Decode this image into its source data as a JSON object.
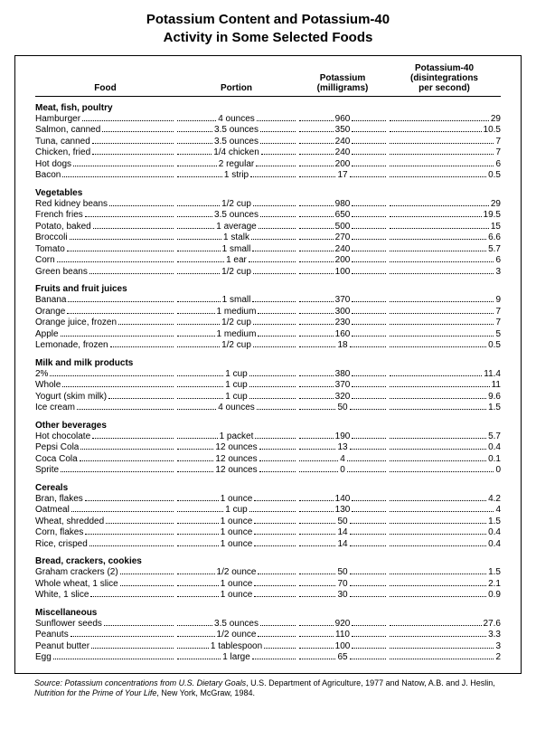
{
  "title_line1": "Potassium Content and Potassium-40",
  "title_line2": "Activity in Some Selected Foods",
  "headers": {
    "food": "Food",
    "portion": "Portion",
    "potassium_l1": "Potassium",
    "potassium_l2": "(milligrams)",
    "k40_l1": "Potassium-40",
    "k40_l2": "(disintegrations",
    "k40_l3": "per second)"
  },
  "categories": [
    {
      "name": "Meat, fish, poultry",
      "rows": [
        {
          "food": "Hamburger",
          "portion": "4 ounces",
          "pot": "960",
          "k40": "29"
        },
        {
          "food": "Salmon, canned",
          "portion": "3.5 ounces",
          "pot": "350",
          "k40": "10.5"
        },
        {
          "food": "Tuna, canned",
          "portion": "3.5 ounces",
          "pot": "240",
          "k40": "7"
        },
        {
          "food": "Chicken, fried",
          "portion": "1/4 chicken",
          "pot": "240",
          "k40": "7"
        },
        {
          "food": "Hot dogs",
          "portion": "2 regular",
          "pot": "200",
          "k40": "6"
        },
        {
          "food": "Bacon",
          "portion": "1 strip",
          "pot": "17",
          "k40": "0.5"
        }
      ]
    },
    {
      "name": "Vegetables",
      "rows": [
        {
          "food": "Red kidney beans",
          "portion": "1/2 cup",
          "pot": "980",
          "k40": "29"
        },
        {
          "food": "French fries",
          "portion": "3.5 ounces",
          "pot": "650",
          "k40": "19.5"
        },
        {
          "food": "Potato, baked",
          "portion": "1 average",
          "pot": "500",
          "k40": "15"
        },
        {
          "food": "Broccoli",
          "portion": "1 stalk",
          "pot": "270",
          "k40": "6.6"
        },
        {
          "food": "Tomato",
          "portion": "1 small",
          "pot": "240",
          "k40": "5.7"
        },
        {
          "food": "Corn",
          "portion": "1 ear",
          "pot": "200",
          "k40": "6"
        },
        {
          "food": "Green beans",
          "portion": "1/2 cup",
          "pot": "100",
          "k40": "3"
        }
      ]
    },
    {
      "name": "Fruits and fruit juices",
      "rows": [
        {
          "food": "Banana",
          "portion": "1 small",
          "pot": "370",
          "k40": "9"
        },
        {
          "food": "Orange",
          "portion": "1 medium",
          "pot": "300",
          "k40": "7"
        },
        {
          "food": "Orange juice, frozen",
          "portion": "1/2 cup",
          "pot": "230",
          "k40": "7"
        },
        {
          "food": "Apple",
          "portion": "1 medium",
          "pot": "160",
          "k40": "5"
        },
        {
          "food": "Lemonade, frozen",
          "portion": "1/2 cup",
          "pot": "18",
          "k40": "0.5"
        }
      ]
    },
    {
      "name": "Milk and milk products",
      "rows": [
        {
          "food": "2%",
          "portion": "1 cup",
          "pot": "380",
          "k40": "11.4"
        },
        {
          "food": "Whole",
          "portion": "1 cup",
          "pot": "370",
          "k40": "11"
        },
        {
          "food": "Yogurt (skim milk)",
          "portion": "1 cup",
          "pot": "320",
          "k40": "9.6"
        },
        {
          "food": "Ice cream",
          "portion": "4 ounces",
          "pot": "50",
          "k40": "1.5"
        }
      ]
    },
    {
      "name": "Other beverages",
      "rows": [
        {
          "food": "Hot chocolate",
          "portion": "1 packet",
          "pot": "190",
          "k40": "5.7"
        },
        {
          "food": "Pepsi Cola",
          "portion": "12 ounces",
          "pot": "13",
          "k40": "0.4"
        },
        {
          "food": "Coca Cola",
          "portion": "12 ounces",
          "pot": "4",
          "k40": "0.1"
        },
        {
          "food": "Sprite",
          "portion": "12 ounces",
          "pot": "0",
          "k40": "0"
        }
      ]
    },
    {
      "name": "Cereals",
      "rows": [
        {
          "food": "Bran, flakes",
          "portion": "1 ounce",
          "pot": "140",
          "k40": "4.2"
        },
        {
          "food": "Oatmeal",
          "portion": "1 cup",
          "pot": "130",
          "k40": "4"
        },
        {
          "food": "Wheat, shredded",
          "portion": "1 ounce",
          "pot": "50",
          "k40": "1.5"
        },
        {
          "food": "Corn, flakes",
          "portion": "1 ounce",
          "pot": "14",
          "k40": "0.4"
        },
        {
          "food": "Rice, crisped",
          "portion": "1 ounce",
          "pot": "14",
          "k40": "0.4"
        }
      ]
    },
    {
      "name": "Bread, crackers, cookies",
      "rows": [
        {
          "food": "Graham crackers (2)",
          "portion": "1/2 ounce",
          "pot": "50",
          "k40": "1.5"
        },
        {
          "food": "Whole wheat, 1 slice",
          "portion": "1 ounce",
          "pot": "70",
          "k40": "2.1"
        },
        {
          "food": "White, 1 slice",
          "portion": "1 ounce",
          "pot": "30",
          "k40": "0.9"
        }
      ]
    },
    {
      "name": "Miscellaneous",
      "rows": [
        {
          "food": "Sunflower seeds",
          "portion": "3.5 ounces",
          "pot": "920",
          "k40": "27.6"
        },
        {
          "food": "Peanuts",
          "portion": "1/2 ounce",
          "pot": "110",
          "k40": "3.3"
        },
        {
          "food": "Peanut butter",
          "portion": "1 tablespoon",
          "pot": "100",
          "k40": "3"
        },
        {
          "food": "Egg",
          "portion": "1 large",
          "pot": "65",
          "k40": "2"
        }
      ]
    }
  ],
  "source": {
    "label": "Source: Potassium concentrations from U.S. Dietary Goals",
    "mid": ", U.S. Department of Agriculture, 1977 and Natow, A.B. and J. Heslin, ",
    "book": "Nutrition for the Prime of Your Life",
    "tail": ", New York, McGraw, 1984."
  }
}
